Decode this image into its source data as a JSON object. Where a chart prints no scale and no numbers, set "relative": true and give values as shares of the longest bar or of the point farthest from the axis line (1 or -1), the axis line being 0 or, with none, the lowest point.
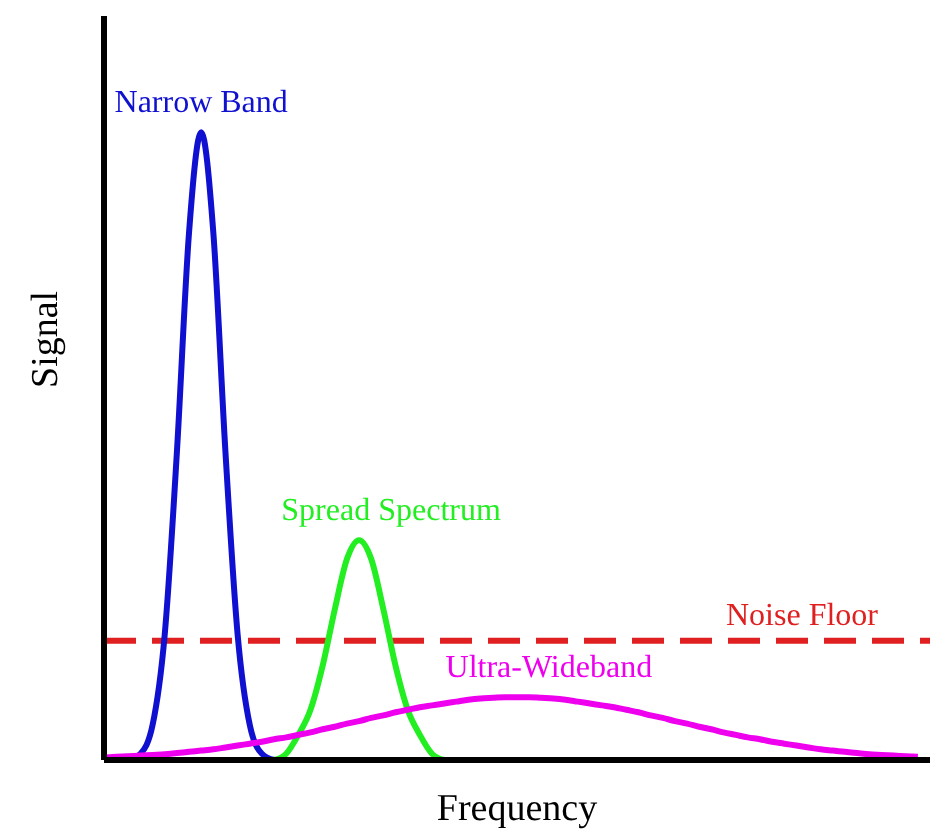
{
  "chart_data": {
    "type": "line",
    "relative": true,
    "xlabel": "Frequency",
    "ylabel": "Signal",
    "marker": "none",
    "categories": [
      null,
      null,
      null,
      null,
      null,
      null,
      null,
      null,
      null,
      null,
      null,
      null,
      null,
      null,
      null,
      null,
      null,
      null,
      null,
      null,
      null,
      null,
      null,
      null,
      null,
      null,
      null,
      null,
      null,
      null,
      null,
      null,
      null,
      null,
      null,
      null,
      null,
      null,
      null,
      null,
      null,
      null,
      null,
      null,
      null,
      null,
      null,
      null,
      null,
      null,
      null,
      null,
      null,
      null,
      null,
      null,
      null,
      null,
      null,
      null,
      null,
      null,
      null,
      null,
      null,
      null,
      null,
      null,
      null
    ],
    "series": [
      {
        "name": "Narrow Band",
        "color": "#1010d0",
        "values": [
          0,
          0,
          0,
          0.01,
          0.056,
          0.2,
          0.49,
          0.84,
          1,
          0.84,
          0.49,
          0.2,
          0.056,
          0.01,
          0,
          null,
          null,
          null,
          null,
          null,
          null,
          null,
          null,
          null,
          null,
          null,
          null,
          null,
          null,
          null,
          null,
          null,
          null,
          null,
          null,
          null,
          null,
          null,
          null,
          null,
          null,
          null,
          null,
          null,
          null,
          null,
          null,
          null,
          null,
          null,
          null,
          null,
          null,
          null,
          null,
          null,
          null,
          null,
          null,
          null,
          null,
          null,
          null,
          null,
          null,
          null,
          null,
          null,
          null
        ]
      },
      {
        "name": "Spread Spectrum",
        "color": "#22ee22",
        "values": [
          null,
          null,
          null,
          null,
          null,
          null,
          null,
          null,
          null,
          null,
          null,
          null,
          null,
          null,
          0,
          0.01,
          0.04,
          0.08,
          0.15,
          0.24,
          0.32,
          0.35,
          0.32,
          0.24,
          0.15,
          0.08,
          0.04,
          0.01,
          0,
          null,
          null,
          null,
          null,
          null,
          null,
          null,
          null,
          null,
          null,
          null,
          null,
          null,
          null,
          null,
          null,
          null,
          null,
          null,
          null,
          null,
          null,
          null,
          null,
          null,
          null,
          null,
          null,
          null,
          null,
          null,
          null,
          null,
          null,
          null,
          null,
          null,
          null,
          null,
          null
        ]
      },
      {
        "name": "Ultra-Wideband",
        "color": "#ee00ee",
        "values": [
          0.004,
          0.005,
          0.006,
          0.007,
          0.008,
          0.009,
          0.011,
          0.013,
          0.015,
          0.017,
          0.02,
          0.023,
          0.026,
          0.029,
          0.033,
          0.036,
          0.04,
          0.044,
          0.049,
          0.053,
          0.058,
          0.062,
          0.067,
          0.071,
          0.076,
          0.08,
          0.084,
          0.087,
          0.09,
          0.093,
          0.096,
          0.098,
          0.099,
          0.1,
          0.1,
          0.1,
          0.099,
          0.098,
          0.096,
          0.093,
          0.09,
          0.087,
          0.084,
          0.08,
          0.076,
          0.071,
          0.067,
          0.062,
          0.058,
          0.053,
          0.049,
          0.044,
          0.04,
          0.036,
          0.033,
          0.029,
          0.026,
          0.023,
          0.02,
          0.017,
          0.015,
          0.013,
          0.011,
          0.009,
          0.008,
          0.007,
          0.006,
          0.005,
          null
        ]
      }
    ],
    "ref_lines": [
      {
        "axis": "y",
        "value": 0.19,
        "label": "Noise Floor",
        "color": "#e02020",
        "line_style": "dashed"
      }
    ]
  }
}
